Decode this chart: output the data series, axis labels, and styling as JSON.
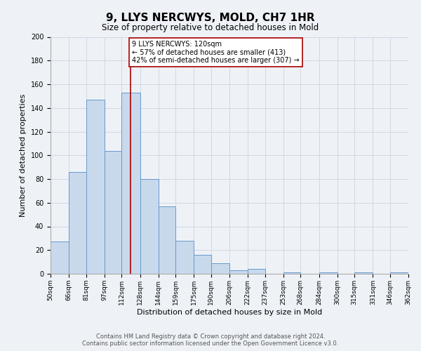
{
  "title": "9, LLYS NERCWYS, MOLD, CH7 1HR",
  "subtitle": "Size of property relative to detached houses in Mold",
  "xlabel": "Distribution of detached houses by size in Mold",
  "ylabel": "Number of detached properties",
  "bar_edges": [
    50,
    66,
    81,
    97,
    112,
    128,
    144,
    159,
    175,
    190,
    206,
    222,
    237,
    253,
    268,
    284,
    300,
    315,
    331,
    346,
    362
  ],
  "bar_heights": [
    27,
    86,
    147,
    104,
    153,
    80,
    57,
    28,
    16,
    9,
    3,
    4,
    0,
    1,
    0,
    1,
    0,
    1,
    0,
    1
  ],
  "bar_color": "#c8d9ec",
  "bar_edge_color": "#6699cc",
  "property_size": 120,
  "property_line_color": "#aa0000",
  "annotation_text": "9 LLYS NERCWYS: 120sqm\n← 57% of detached houses are smaller (413)\n42% of semi-detached houses are larger (307) →",
  "annotation_box_edge_color": "#aa0000",
  "ylim": [
    0,
    200
  ],
  "yticks": [
    0,
    20,
    40,
    60,
    80,
    100,
    120,
    140,
    160,
    180,
    200
  ],
  "grid_color": "#d0d8e4",
  "background_color": "#eef2f7",
  "footer_line1": "Contains HM Land Registry data © Crown copyright and database right 2024.",
  "footer_line2": "Contains public sector information licensed under the Open Government Licence v3.0.",
  "title_fontsize": 11,
  "subtitle_fontsize": 8.5,
  "tick_label_fontsize": 6.5,
  "axis_label_fontsize": 8,
  "footer_fontsize": 6,
  "annotation_fontsize": 7
}
